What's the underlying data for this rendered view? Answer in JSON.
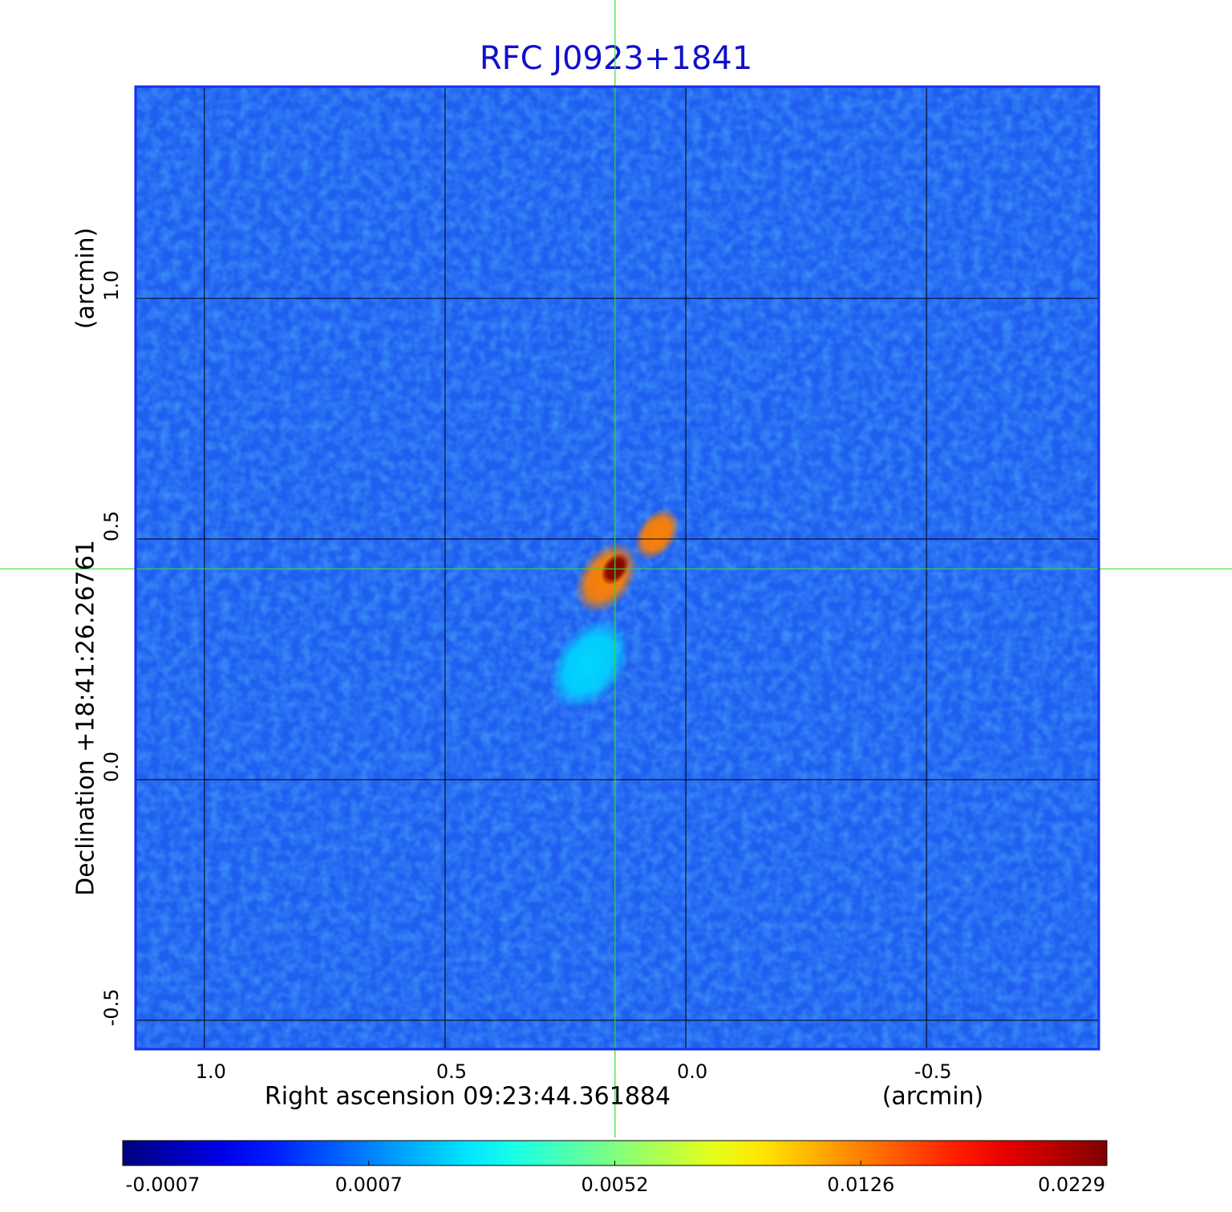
{
  "chart_data": {
    "type": "image",
    "title": "RFC J0923+1841",
    "xlabel": "Right ascension  09:23:44.361884",
    "xunit": "(arcmin)",
    "ylabel": "Declination  +18:41:26.26761",
    "yunit": "(arcmin)",
    "xlim": [
      1.143,
      -0.858
    ],
    "ylim": [
      -0.56,
      1.44
    ],
    "xticks": [
      {
        "value": 1,
        "label": "1.0"
      },
      0.5,
      {
        "value": 0,
        "label": "0.0"
      },
      -0.5
    ],
    "yticks": [
      -0.5,
      {
        "value": 0,
        "label": "0.0"
      },
      0.5,
      {
        "value": 1,
        "label": "1.0"
      }
    ],
    "grid": true,
    "colormap": "jet",
    "colorbar_ticks": [
      -0.0007,
      0.0007,
      0.0052,
      0.0126,
      0.0229
    ],
    "crosshair": {
      "x": 0.147,
      "y": 0.438,
      "color": "#33dd33"
    },
    "sources": [
      {
        "x": 0.2,
        "y": 0.24,
        "value": 0.0022,
        "radius": 0.07
      },
      {
        "x": 0.06,
        "y": 0.51,
        "value": 0.0126,
        "radius": 0.04
      },
      {
        "x": 0.165,
        "y": 0.42,
        "value": 0.0126,
        "radius": 0.055
      },
      {
        "x": 0.147,
        "y": 0.438,
        "value": 0.0229,
        "radius": 0.025
      }
    ]
  }
}
